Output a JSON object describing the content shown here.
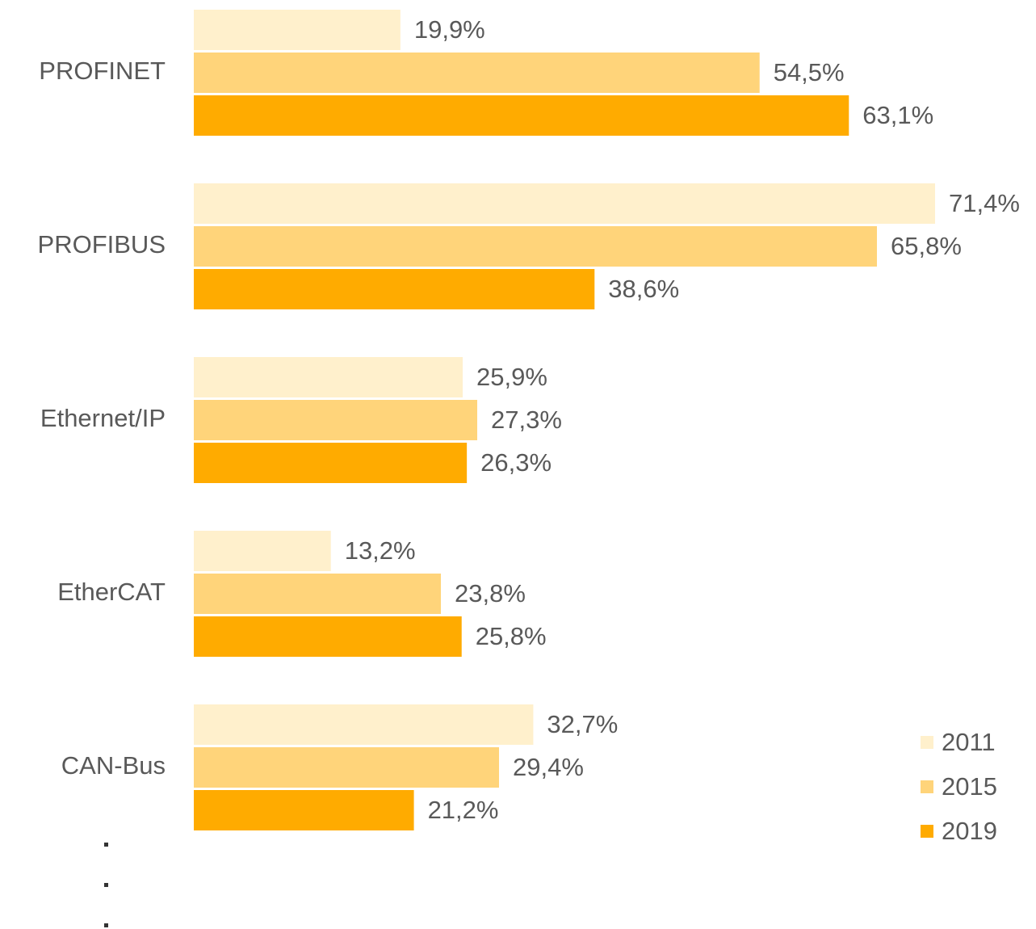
{
  "chart_data": {
    "type": "bar",
    "orientation": "horizontal",
    "categories": [
      "PROFINET",
      "PROFIBUS",
      "Ethernet/IP",
      "EtherCAT",
      "CAN-Bus"
    ],
    "series": [
      {
        "name": "2011",
        "color": "#fff0cc",
        "values": [
          19.9,
          71.4,
          25.9,
          13.2,
          32.7
        ],
        "value_labels": [
          "19,9%",
          "71,4%",
          "25,9%",
          "13,2%",
          "32,7%"
        ]
      },
      {
        "name": "2015",
        "color": "#ffd47a",
        "values": [
          54.5,
          65.8,
          27.3,
          23.8,
          29.4
        ],
        "value_labels": [
          "54,5%",
          "65,8%",
          "27,3%",
          "23,8%",
          "29,4%"
        ]
      },
      {
        "name": "2019",
        "color": "#ffab00",
        "values": [
          63.1,
          38.6,
          26.3,
          25.8,
          21.2
        ],
        "value_labels": [
          "63,1%",
          "38,6%",
          "26,3%",
          "25,8%",
          "21,2%"
        ]
      }
    ],
    "legend": "bottom-right"
  }
}
